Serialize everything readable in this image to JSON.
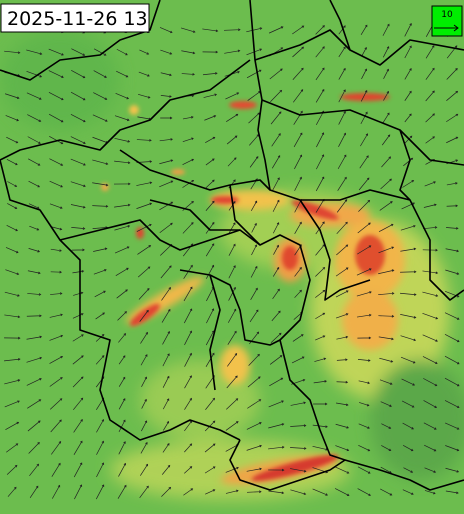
{
  "timestamp": "2025-11-26 13",
  "legend": {
    "label": "10"
  }
}
